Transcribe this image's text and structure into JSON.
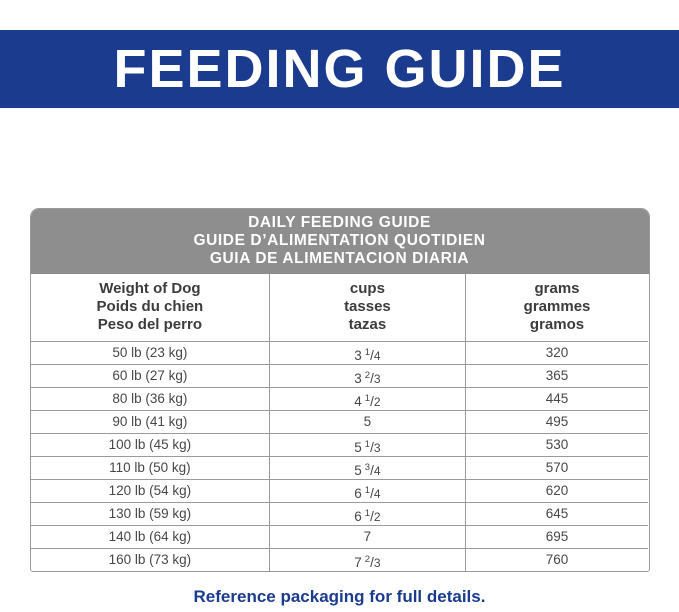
{
  "banner": {
    "title": "FEEDING GUIDE"
  },
  "table": {
    "title_lines": [
      "DAILY FEEDING GUIDE",
      "GUIDE D’ALIMENTATION QUOTIDIEN",
      "GUIA DE ALIMENTACION DIARIA"
    ],
    "columns": [
      {
        "lines": [
          "Weight of Dog",
          "Poids du chien",
          "Peso del perro"
        ]
      },
      {
        "lines": [
          "cups",
          "tasses",
          "tazas"
        ]
      },
      {
        "lines": [
          "grams",
          "grammes",
          "gramos"
        ]
      }
    ],
    "rows": [
      {
        "weight": "50 lb (23 kg)",
        "cups": {
          "whole": "3",
          "num": "1",
          "den": "4"
        },
        "grams": "320"
      },
      {
        "weight": "60 lb (27 kg)",
        "cups": {
          "whole": "3",
          "num": "2",
          "den": "3"
        },
        "grams": "365"
      },
      {
        "weight": "80 lb (36 kg)",
        "cups": {
          "whole": "4",
          "num": "1",
          "den": "2"
        },
        "grams": "445"
      },
      {
        "weight": "90 lb (41 kg)",
        "cups": {
          "whole": "5",
          "num": "",
          "den": ""
        },
        "grams": "495"
      },
      {
        "weight": "100 lb (45 kg)",
        "cups": {
          "whole": "5",
          "num": "1",
          "den": "3"
        },
        "grams": "530"
      },
      {
        "weight": "110 lb (50 kg)",
        "cups": {
          "whole": "5",
          "num": "3",
          "den": "4"
        },
        "grams": "570"
      },
      {
        "weight": "120 lb (54 kg)",
        "cups": {
          "whole": "6",
          "num": "1",
          "den": "4"
        },
        "grams": "620"
      },
      {
        "weight": "130 lb (59 kg)",
        "cups": {
          "whole": "6",
          "num": "1",
          "den": "2"
        },
        "grams": "645"
      },
      {
        "weight": "140 lb (64 kg)",
        "cups": {
          "whole": "7",
          "num": "",
          "den": ""
        },
        "grams": "695"
      },
      {
        "weight": "160 lb (73 kg)",
        "cups": {
          "whole": "7",
          "num": "2",
          "den": "3"
        },
        "grams": "760"
      }
    ]
  },
  "footer": {
    "note": "Reference packaging for full details."
  },
  "colors": {
    "banner_blue": "#1b3b8f",
    "header_gray": "#8e8e8e",
    "border_gray": "#9a9a9a",
    "note_blue": "#1b3b8f"
  }
}
